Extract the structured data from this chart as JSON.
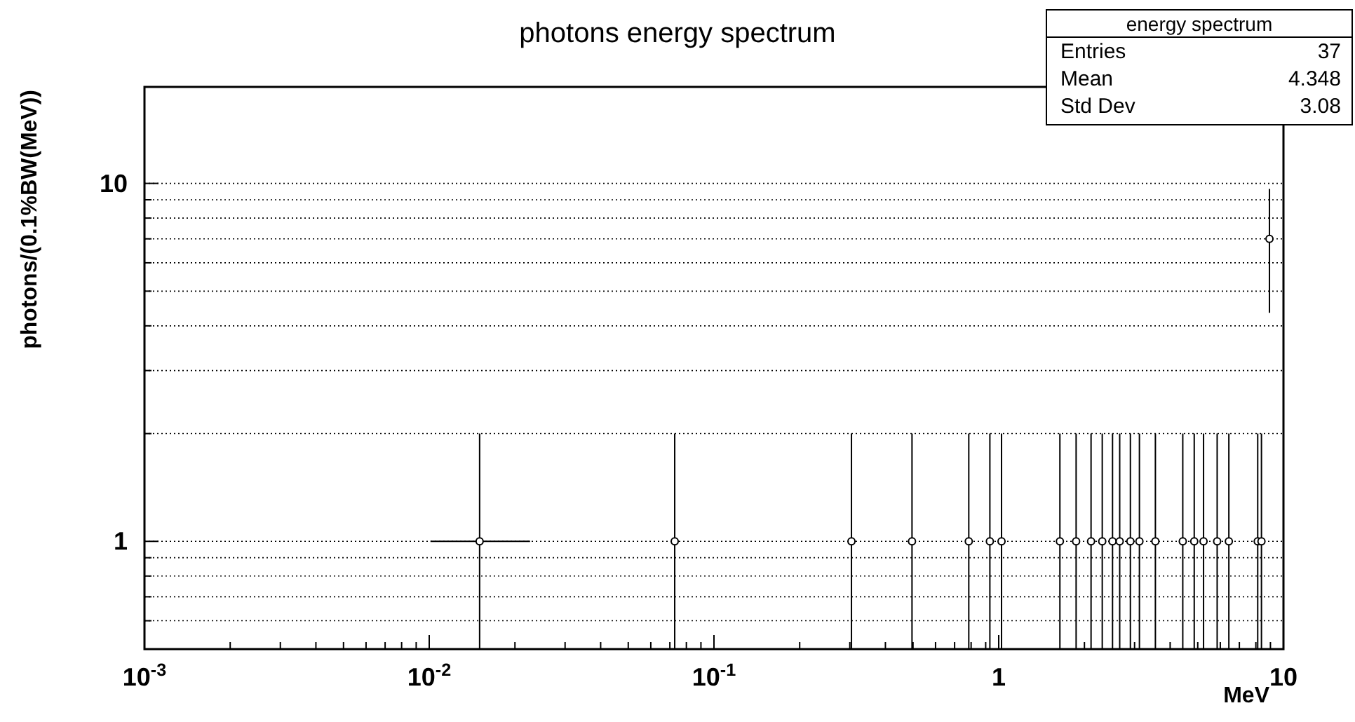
{
  "chart_data": {
    "type": "scatter",
    "title": "photons energy spectrum",
    "xlabel": "MeV",
    "ylabel": "photons/(0.1%BW(MeV))",
    "legend_title": "energy spectrum",
    "annotations": [
      "Entries 37",
      "Mean 4.348",
      "Std Dev 3.08"
    ],
    "log": "xy",
    "grid": "y",
    "marker": "circle",
    "xlim": [
      0.001,
      10
    ],
    "ylim": [
      0.5,
      18.6
    ],
    "xticks": [
      {
        "value": 0.001,
        "label": "10$^{-3}$"
      },
      {
        "value": 0.002,
        "label": null
      },
      {
        "value": 0.003,
        "label": null
      },
      {
        "value": 0.004,
        "label": null
      },
      {
        "value": 0.005,
        "label": null
      },
      {
        "value": 0.006,
        "label": null
      },
      {
        "value": 0.007,
        "label": null
      },
      {
        "value": 0.008,
        "label": null
      },
      {
        "value": 0.009,
        "label": null
      },
      {
        "value": 0.01,
        "label": "10$^{-2}$"
      },
      {
        "value": 0.02,
        "label": null
      },
      {
        "value": 0.03,
        "label": null
      },
      {
        "value": 0.04,
        "label": null
      },
      {
        "value": 0.05,
        "label": null
      },
      {
        "value": 0.06,
        "label": null
      },
      {
        "value": 0.07,
        "label": null
      },
      {
        "value": 0.08,
        "label": null
      },
      {
        "value": 0.09,
        "label": null
      },
      {
        "value": 0.1,
        "label": "10$^{-1}$"
      },
      {
        "value": 0.2,
        "label": null
      },
      {
        "value": 0.3,
        "label": null
      },
      {
        "value": 0.4,
        "label": null
      },
      {
        "value": 0.5,
        "label": null
      },
      {
        "value": 0.6,
        "label": null
      },
      {
        "value": 0.7,
        "label": null
      },
      {
        "value": 0.8,
        "label": null
      },
      {
        "value": 0.9,
        "label": null
      },
      1,
      {
        "value": 2,
        "label": null
      },
      {
        "value": 3,
        "label": null
      },
      {
        "value": 4,
        "label": null
      },
      {
        "value": 5,
        "label": null
      },
      {
        "value": 6,
        "label": null
      },
      {
        "value": 7,
        "label": null
      },
      {
        "value": 8,
        "label": null
      },
      {
        "value": 9,
        "label": null
      },
      10
    ],
    "yticks": [
      {
        "value": 0.6,
        "label": null
      },
      {
        "value": 0.7,
        "label": null
      },
      {
        "value": 0.8,
        "label": null
      },
      {
        "value": 0.9,
        "label": null
      },
      1,
      {
        "value": 2,
        "label": null
      },
      {
        "value": 3,
        "label": null
      },
      {
        "value": 4,
        "label": null
      },
      {
        "value": 5,
        "label": null
      },
      {
        "value": 6,
        "label": null
      },
      {
        "value": 7,
        "label": null
      },
      {
        "value": 8,
        "label": null
      },
      {
        "value": 9,
        "label": null
      },
      10
    ],
    "series": [
      {
        "color": "#000000",
        "x": [
          0.01503,
          0.0728,
          0.304,
          0.496,
          0.785,
          0.931,
          1.023,
          1.64,
          1.87,
          2.11,
          2.31,
          2.51,
          2.66,
          2.9,
          3.12,
          3.55,
          4.43,
          4.86,
          5.24,
          5.85,
          6.43,
          8.12,
          8.37,
          8.93
        ],
        "values": [
          1,
          1,
          1,
          1,
          1,
          1,
          1,
          1,
          1,
          1,
          1,
          1,
          1,
          1,
          1,
          1,
          1,
          1,
          1,
          1,
          1,
          1,
          1,
          7
        ],
        "errors": [
          [
            0.5,
            2
          ],
          [
            0.5,
            2
          ],
          [
            0.5,
            2
          ],
          [
            0.5,
            2
          ],
          [
            0.5,
            2
          ],
          [
            0.5,
            2
          ],
          [
            0.5,
            2
          ],
          [
            0.5,
            2
          ],
          [
            0.5,
            2
          ],
          [
            0.5,
            2
          ],
          [
            0.5,
            2
          ],
          [
            0.5,
            2
          ],
          [
            0.5,
            2
          ],
          [
            0.5,
            2
          ],
          [
            0.5,
            2
          ],
          [
            0.5,
            2
          ],
          [
            0.5,
            2
          ],
          [
            0.5,
            2
          ],
          [
            0.5,
            2
          ],
          [
            0.5,
            2
          ],
          [
            0.5,
            2
          ],
          [
            0.5,
            2
          ],
          [
            0.5,
            2
          ],
          [
            4.35,
            9.65
          ]
        ],
        "xerrors": [
          [
            0.0101,
            0.0226
          ],
          null,
          null,
          null,
          null,
          null,
          null,
          null,
          null,
          null,
          null,
          null,
          null,
          null,
          null,
          null,
          null,
          null,
          null,
          null,
          null,
          null,
          null,
          null
        ]
      }
    ]
  }
}
